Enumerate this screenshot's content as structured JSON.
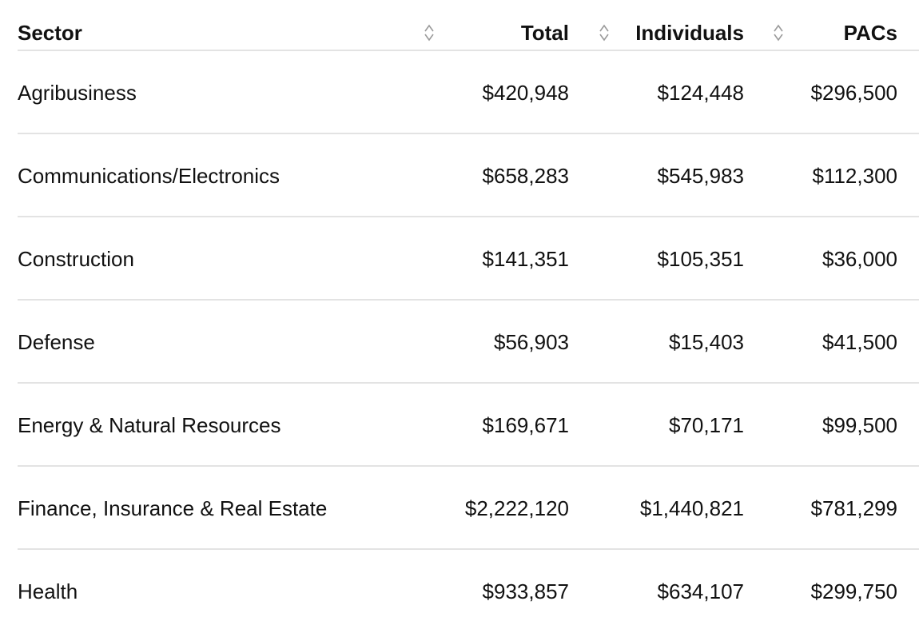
{
  "table": {
    "headers": {
      "sector": "Sector",
      "total": "Total",
      "individuals": "Individuals",
      "pacs": "PACs"
    },
    "rows": [
      {
        "sector": "Agribusiness",
        "total": "$420,948",
        "individuals": "$124,448",
        "pacs": "$296,500"
      },
      {
        "sector": "Communications/Electronics",
        "total": "$658,283",
        "individuals": "$545,983",
        "pacs": "$112,300"
      },
      {
        "sector": "Construction",
        "total": "$141,351",
        "individuals": "$105,351",
        "pacs": "$36,000"
      },
      {
        "sector": "Defense",
        "total": "$56,903",
        "individuals": "$15,403",
        "pacs": "$41,500"
      },
      {
        "sector": "Energy & Natural Resources",
        "total": "$169,671",
        "individuals": "$70,171",
        "pacs": "$99,500"
      },
      {
        "sector": "Finance, Insurance & Real Estate",
        "total": "$2,222,120",
        "individuals": "$1,440,821",
        "pacs": "$781,299"
      },
      {
        "sector": "Health",
        "total": "$933,857",
        "individuals": "$634,107",
        "pacs": "$299,750"
      }
    ]
  },
  "icons": {
    "sort": "sort-toggle-icon"
  },
  "colors": {
    "divider": "#e3e3e3",
    "text": "#111111",
    "sort_icon": "#9a9a9a"
  }
}
